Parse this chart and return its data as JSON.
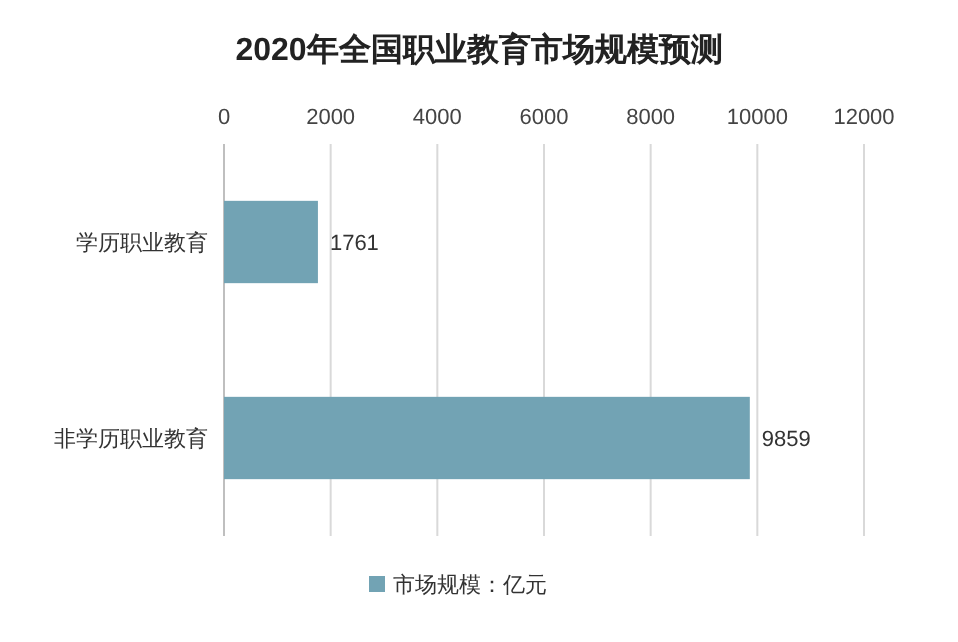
{
  "chart_data": {
    "type": "bar",
    "orientation": "horizontal",
    "title": "2020年全国职业教育市场规模预测",
    "categories": [
      "学历职业教育",
      "非学历职业教育"
    ],
    "series": [
      {
        "name": "市场规模：亿元",
        "color": "#72a3b4",
        "values": [
          1761,
          9859
        ]
      }
    ],
    "xlim": [
      0,
      12000
    ],
    "xticks": [
      0,
      2000,
      4000,
      6000,
      8000,
      10000,
      12000
    ],
    "grid": "x",
    "legend": "bottom",
    "data_labels": true
  }
}
